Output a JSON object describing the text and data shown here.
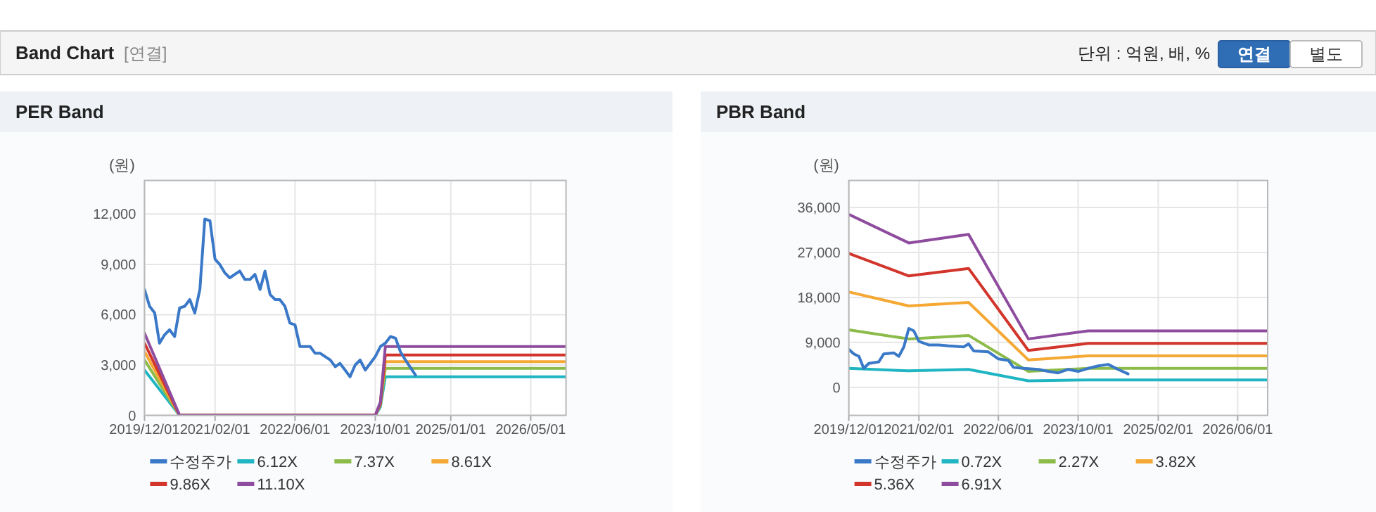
{
  "chart_data": [
    {
      "type": "other",
      "title": "Band Chart",
      "annotations": [
        "[연결]",
        "단위 : 억원, 배, %",
        "연결",
        "별도"
      ]
    },
    {
      "type": "line",
      "title": "PER Band",
      "ylabel": "(원)",
      "xlim": [
        "2019-12-01",
        "2026-12-01"
      ],
      "ylim": [
        0,
        14000
      ],
      "xticks": [
        {
          "value": "2019-12-01",
          "label": "2019/12/01"
        },
        {
          "value": "2021-02-01",
          "label": "2021/02/01"
        },
        {
          "value": "2022-06-01",
          "label": "2022/06/01"
        },
        {
          "value": "2023-10-01",
          "label": "2023/10/01"
        },
        {
          "value": "2025-01-01",
          "label": "2025/01/01"
        },
        {
          "value": "2026-05-01",
          "label": "2026/05/01"
        }
      ],
      "yticks": [
        0,
        {
          "value": 3000,
          "label": "3,000"
        },
        {
          "value": 6000,
          "label": "6,000"
        },
        {
          "value": 9000,
          "label": "9,000"
        },
        {
          "value": 12000,
          "label": "12,000"
        }
      ],
      "grid": true,
      "legend": "bottom",
      "marker": "none",
      "line_style": "solid",
      "series": [
        {
          "name": "수정주가",
          "color": "#3a78c8",
          "x": [
            "2019-12",
            "2020-01",
            "2020-02",
            "2020-03",
            "2020-04",
            "2020-05",
            "2020-06",
            "2020-07",
            "2020-08",
            "2020-09",
            "2020-10",
            "2020-11",
            "2020-12",
            "2021-01",
            "2021-02",
            "2021-03",
            "2021-04",
            "2021-05",
            "2021-07",
            "2021-08",
            "2021-09",
            "2021-10",
            "2021-11",
            "2021-12",
            "2022-01",
            "2022-02",
            "2022-03",
            "2022-04",
            "2022-05",
            "2022-06",
            "2022-07",
            "2022-09",
            "2022-10",
            "2022-11",
            "2023-01",
            "2023-02",
            "2023-03",
            "2023-04",
            "2023-05",
            "2023-06",
            "2023-07",
            "2023-08",
            "2023-10",
            "2023-11",
            "2023-12",
            "2024-01",
            "2024-02",
            "2024-03",
            "2024-04",
            "2024-06"
          ],
          "values": [
            7500,
            6500,
            6100,
            4300,
            4800,
            5100,
            4700,
            6400,
            6500,
            6900,
            6100,
            7500,
            11700,
            11600,
            9300,
            9000,
            8500,
            8200,
            8600,
            8100,
            8100,
            8400,
            7500,
            8600,
            7200,
            6900,
            6900,
            6500,
            5500,
            5400,
            4100,
            4100,
            3700,
            3700,
            3300,
            2900,
            3100,
            2700,
            2300,
            3000,
            3300,
            2700,
            3500,
            4100,
            4300,
            4700,
            4600,
            3800,
            3300,
            2400
          ]
        },
        {
          "name": "6.12X",
          "color": "#1fb5c2",
          "x": [
            "2019-12",
            "2020-07",
            "2023-10",
            "2023-11",
            "2023-12",
            "2026-12"
          ],
          "values": [
            2700,
            0,
            0,
            500,
            2300,
            2300
          ]
        },
        {
          "name": "7.37X",
          "color": "#8cbb4a",
          "x": [
            "2019-12",
            "2020-07",
            "2023-10",
            "2023-11",
            "2023-12",
            "2026-12"
          ],
          "values": [
            3300,
            0,
            0,
            600,
            2800,
            2800
          ]
        },
        {
          "name": "8.61X",
          "color": "#f5a833",
          "x": [
            "2019-12",
            "2020-07",
            "2023-10",
            "2023-11",
            "2023-12",
            "2026-12"
          ],
          "values": [
            3800,
            0,
            0,
            700,
            3200,
            3200
          ]
        },
        {
          "name": "9.86X",
          "color": "#d2352b",
          "x": [
            "2019-12",
            "2020-07",
            "2023-10",
            "2023-11",
            "2023-12",
            "2026-12"
          ],
          "values": [
            4300,
            0,
            0,
            700,
            3600,
            3600
          ]
        },
        {
          "name": "11.10X",
          "color": "#8e4c9e",
          "x": [
            "2019-12",
            "2020-07",
            "2023-10",
            "2023-11",
            "2023-12",
            "2026-12"
          ],
          "values": [
            4900,
            0,
            0,
            800,
            4100,
            4100
          ]
        }
      ]
    },
    {
      "type": "line",
      "title": "PBR Band",
      "ylabel": "(원)",
      "xlim": [
        "2019-12-01",
        "2026-12-01"
      ],
      "ylim": [
        -5600,
        41400
      ],
      "xticks": [
        {
          "value": "2019-12-01",
          "label": "2019/12/01"
        },
        {
          "value": "2021-02-01",
          "label": "2021/02/01"
        },
        {
          "value": "2022-06-01",
          "label": "2022/06/01"
        },
        {
          "value": "2023-10-01",
          "label": "2023/10/01"
        },
        {
          "value": "2025-02-01",
          "label": "2025/02/01"
        },
        {
          "value": "2026-06-01",
          "label": "2026/06/01"
        }
      ],
      "yticks": [
        0,
        {
          "value": 9000,
          "label": "9,000"
        },
        {
          "value": 18000,
          "label": "18,000"
        },
        {
          "value": 27000,
          "label": "27,000"
        },
        {
          "value": 36000,
          "label": "36,000"
        }
      ],
      "grid": true,
      "legend": "bottom",
      "marker": "none",
      "line_style": "solid",
      "series": [
        {
          "name": "수정주가",
          "color": "#3a78c8",
          "x": [
            "2019-12",
            "2020-01",
            "2020-02",
            "2020-03",
            "2020-04",
            "2020-06",
            "2020-07",
            "2020-09",
            "2020-10",
            "2020-11",
            "2020-12",
            "2021-01",
            "2021-02",
            "2021-04",
            "2021-06",
            "2021-08",
            "2021-11",
            "2021-12",
            "2022-01",
            "2022-04",
            "2022-06",
            "2022-08",
            "2022-09",
            "2022-11",
            "2023-02",
            "2023-04",
            "2023-06",
            "2023-08",
            "2023-10",
            "2023-12",
            "2024-02",
            "2024-04",
            "2024-06",
            "2024-08"
          ],
          "values": [
            7600,
            6700,
            6200,
            3800,
            4800,
            5100,
            6700,
            6900,
            6200,
            8100,
            11800,
            11300,
            9200,
            8500,
            8500,
            8300,
            8100,
            8700,
            7300,
            7100,
            5700,
            5400,
            4000,
            3800,
            3600,
            3200,
            2900,
            3600,
            3200,
            3800,
            4300,
            4600,
            3600,
            2700
          ]
        },
        {
          "name": "0.72X",
          "color": "#1fb5c2",
          "x": [
            "2019-12",
            "2020-12",
            "2021-12",
            "2022-12",
            "2023-12",
            "2026-12"
          ],
          "values": [
            3800,
            3300,
            3600,
            1300,
            1500,
            1500
          ]
        },
        {
          "name": "2.27X",
          "color": "#8cbb4a",
          "x": [
            "2019-12",
            "2020-12",
            "2021-12",
            "2022-12",
            "2023-12",
            "2026-12"
          ],
          "values": [
            11500,
            9700,
            10400,
            3200,
            3800,
            3800
          ]
        },
        {
          "name": "3.82X",
          "color": "#f5a833",
          "x": [
            "2019-12",
            "2020-12",
            "2021-12",
            "2022-12",
            "2023-12",
            "2026-12"
          ],
          "values": [
            19100,
            16300,
            17000,
            5500,
            6300,
            6300
          ]
        },
        {
          "name": "5.36X",
          "color": "#d2352b",
          "x": [
            "2019-12",
            "2020-12",
            "2021-12",
            "2022-12",
            "2023-12",
            "2026-12"
          ],
          "values": [
            26800,
            22300,
            23800,
            7400,
            8800,
            8800
          ]
        },
        {
          "name": "6.91X",
          "color": "#8e4c9e",
          "x": [
            "2019-12",
            "2020-12",
            "2021-12",
            "2022-12",
            "2023-12",
            "2026-12"
          ],
          "values": [
            34600,
            28900,
            30600,
            9700,
            11300,
            11300
          ]
        }
      ]
    }
  ]
}
